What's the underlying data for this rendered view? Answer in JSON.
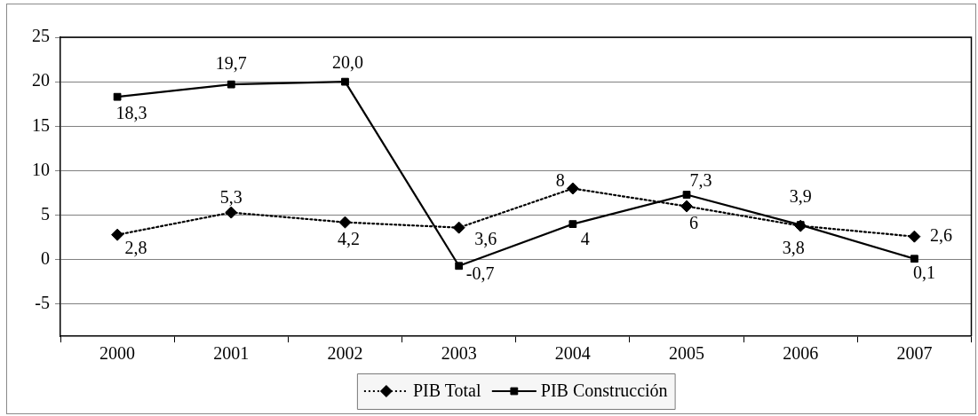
{
  "chart_data": {
    "type": "line",
    "categories": [
      "2000",
      "2001",
      "2002",
      "2003",
      "2004",
      "2005",
      "2006",
      "2007"
    ],
    "series": [
      {
        "name": "PIB Total",
        "color": "#000000",
        "line_style": "dotted",
        "marker": "diamond",
        "values": [
          2.8,
          5.3,
          4.2,
          3.6,
          8,
          6,
          3.8,
          2.6
        ],
        "value_labels": [
          "2,8",
          "5,3",
          "4,2",
          "3,6",
          "8",
          "6",
          "3,8",
          "2,6"
        ]
      },
      {
        "name": "PIB Construcción",
        "color": "#000000",
        "line_style": "solid",
        "marker": "square",
        "values": [
          18.3,
          19.7,
          20.0,
          -0.7,
          4,
          7.3,
          3.9,
          0.1
        ],
        "value_labels": [
          "18,3",
          "19,7",
          "20,0",
          "-0,7",
          "4",
          "7,3",
          "3,9",
          "0,1"
        ]
      }
    ],
    "ylim": [
      -8.6,
      25
    ],
    "yticks": [
      -5,
      0,
      5,
      10,
      15,
      20,
      25
    ],
    "grid": "y",
    "legend": "bottom"
  }
}
